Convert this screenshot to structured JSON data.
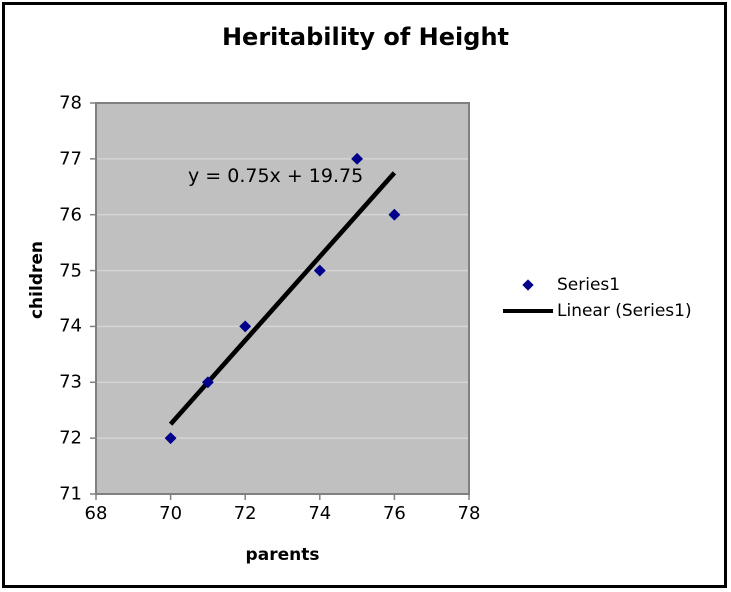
{
  "chart_data": {
    "type": "scatter",
    "title": "Heritability of Height",
    "xlabel": "parents",
    "ylabel": "children",
    "xlim": [
      68,
      78
    ],
    "ylim": [
      71,
      78
    ],
    "x_ticks": [
      68,
      70,
      72,
      74,
      76,
      78
    ],
    "y_ticks": [
      71,
      72,
      73,
      74,
      75,
      76,
      77,
      78
    ],
    "grid": "horizontal-major-only",
    "legend_position": "right",
    "annotation": {
      "text": "y = 0.75x + 19.75"
    },
    "series": [
      {
        "name": "Series1",
        "kind": "scatter",
        "marker": "diamond",
        "color": "#00008b",
        "points": [
          [
            70,
            72
          ],
          [
            71,
            73
          ],
          [
            72,
            74
          ],
          [
            74,
            75
          ],
          [
            75,
            77
          ],
          [
            76,
            76
          ]
        ]
      },
      {
        "name": "Linear (Series1)",
        "kind": "trendline",
        "color": "#000000",
        "slope": 0.75,
        "intercept": 19.75,
        "x_start": 70,
        "x_end": 76
      }
    ],
    "colors": {
      "plot_background": "#c0c0c0",
      "plot_border": "#808080",
      "gridline": "#d6d6d6",
      "tick": "#808080",
      "outer_border": "#000000"
    }
  }
}
